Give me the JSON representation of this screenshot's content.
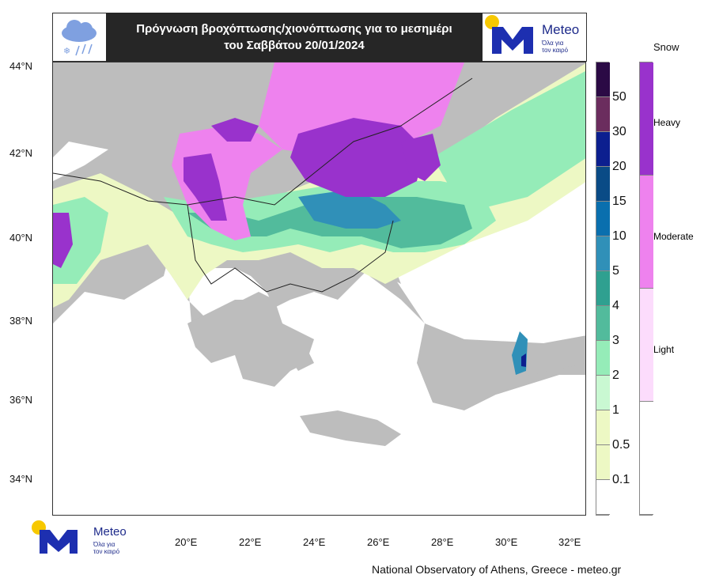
{
  "header": {
    "title_line1": "Πρόγνωση βροχόπτωσης/χιονόπτωσης για το μεσημέρι",
    "title_line2": "του Σαββάτου 20/01/2024",
    "left_icon": "cloud-rain-snow-icon"
  },
  "logo": {
    "name": "Meteo",
    "tagline1": "Όλα για",
    "tagline2": "τον καιρό"
  },
  "map": {
    "lat_ticks": [
      "44°N",
      "42°N",
      "40°N",
      "38°N",
      "36°N",
      "34°N"
    ],
    "lon_ticks": [
      "20°E",
      "22°E",
      "24°E",
      "26°E",
      "28°E",
      "30°E",
      "32°E"
    ]
  },
  "rain_legend": {
    "labels": [
      "50",
      "30",
      "20",
      "15",
      "10",
      "5",
      "4",
      "3",
      "2",
      "1",
      "0.5",
      "0.1"
    ],
    "colors": [
      "#2b0a45",
      "#6b2d5e",
      "#0c1f8f",
      "#0a4b86",
      "#0a6fae",
      "#3090b8",
      "#2fa090",
      "#52bb9c",
      "#95ecb8",
      "#c9f8d2",
      "#edf8c4",
      "#edf8c4",
      "#ffffff"
    ]
  },
  "snow_legend": {
    "title": "Snow",
    "labels": [
      "Heavy",
      "Moderate",
      "Light"
    ],
    "colors": [
      "#9932cc",
      "#ee82ee",
      "#fcdcfc",
      "#ffffff"
    ]
  },
  "footer": {
    "credit": "National Observatory of Athens, Greece - meteo.gr"
  }
}
